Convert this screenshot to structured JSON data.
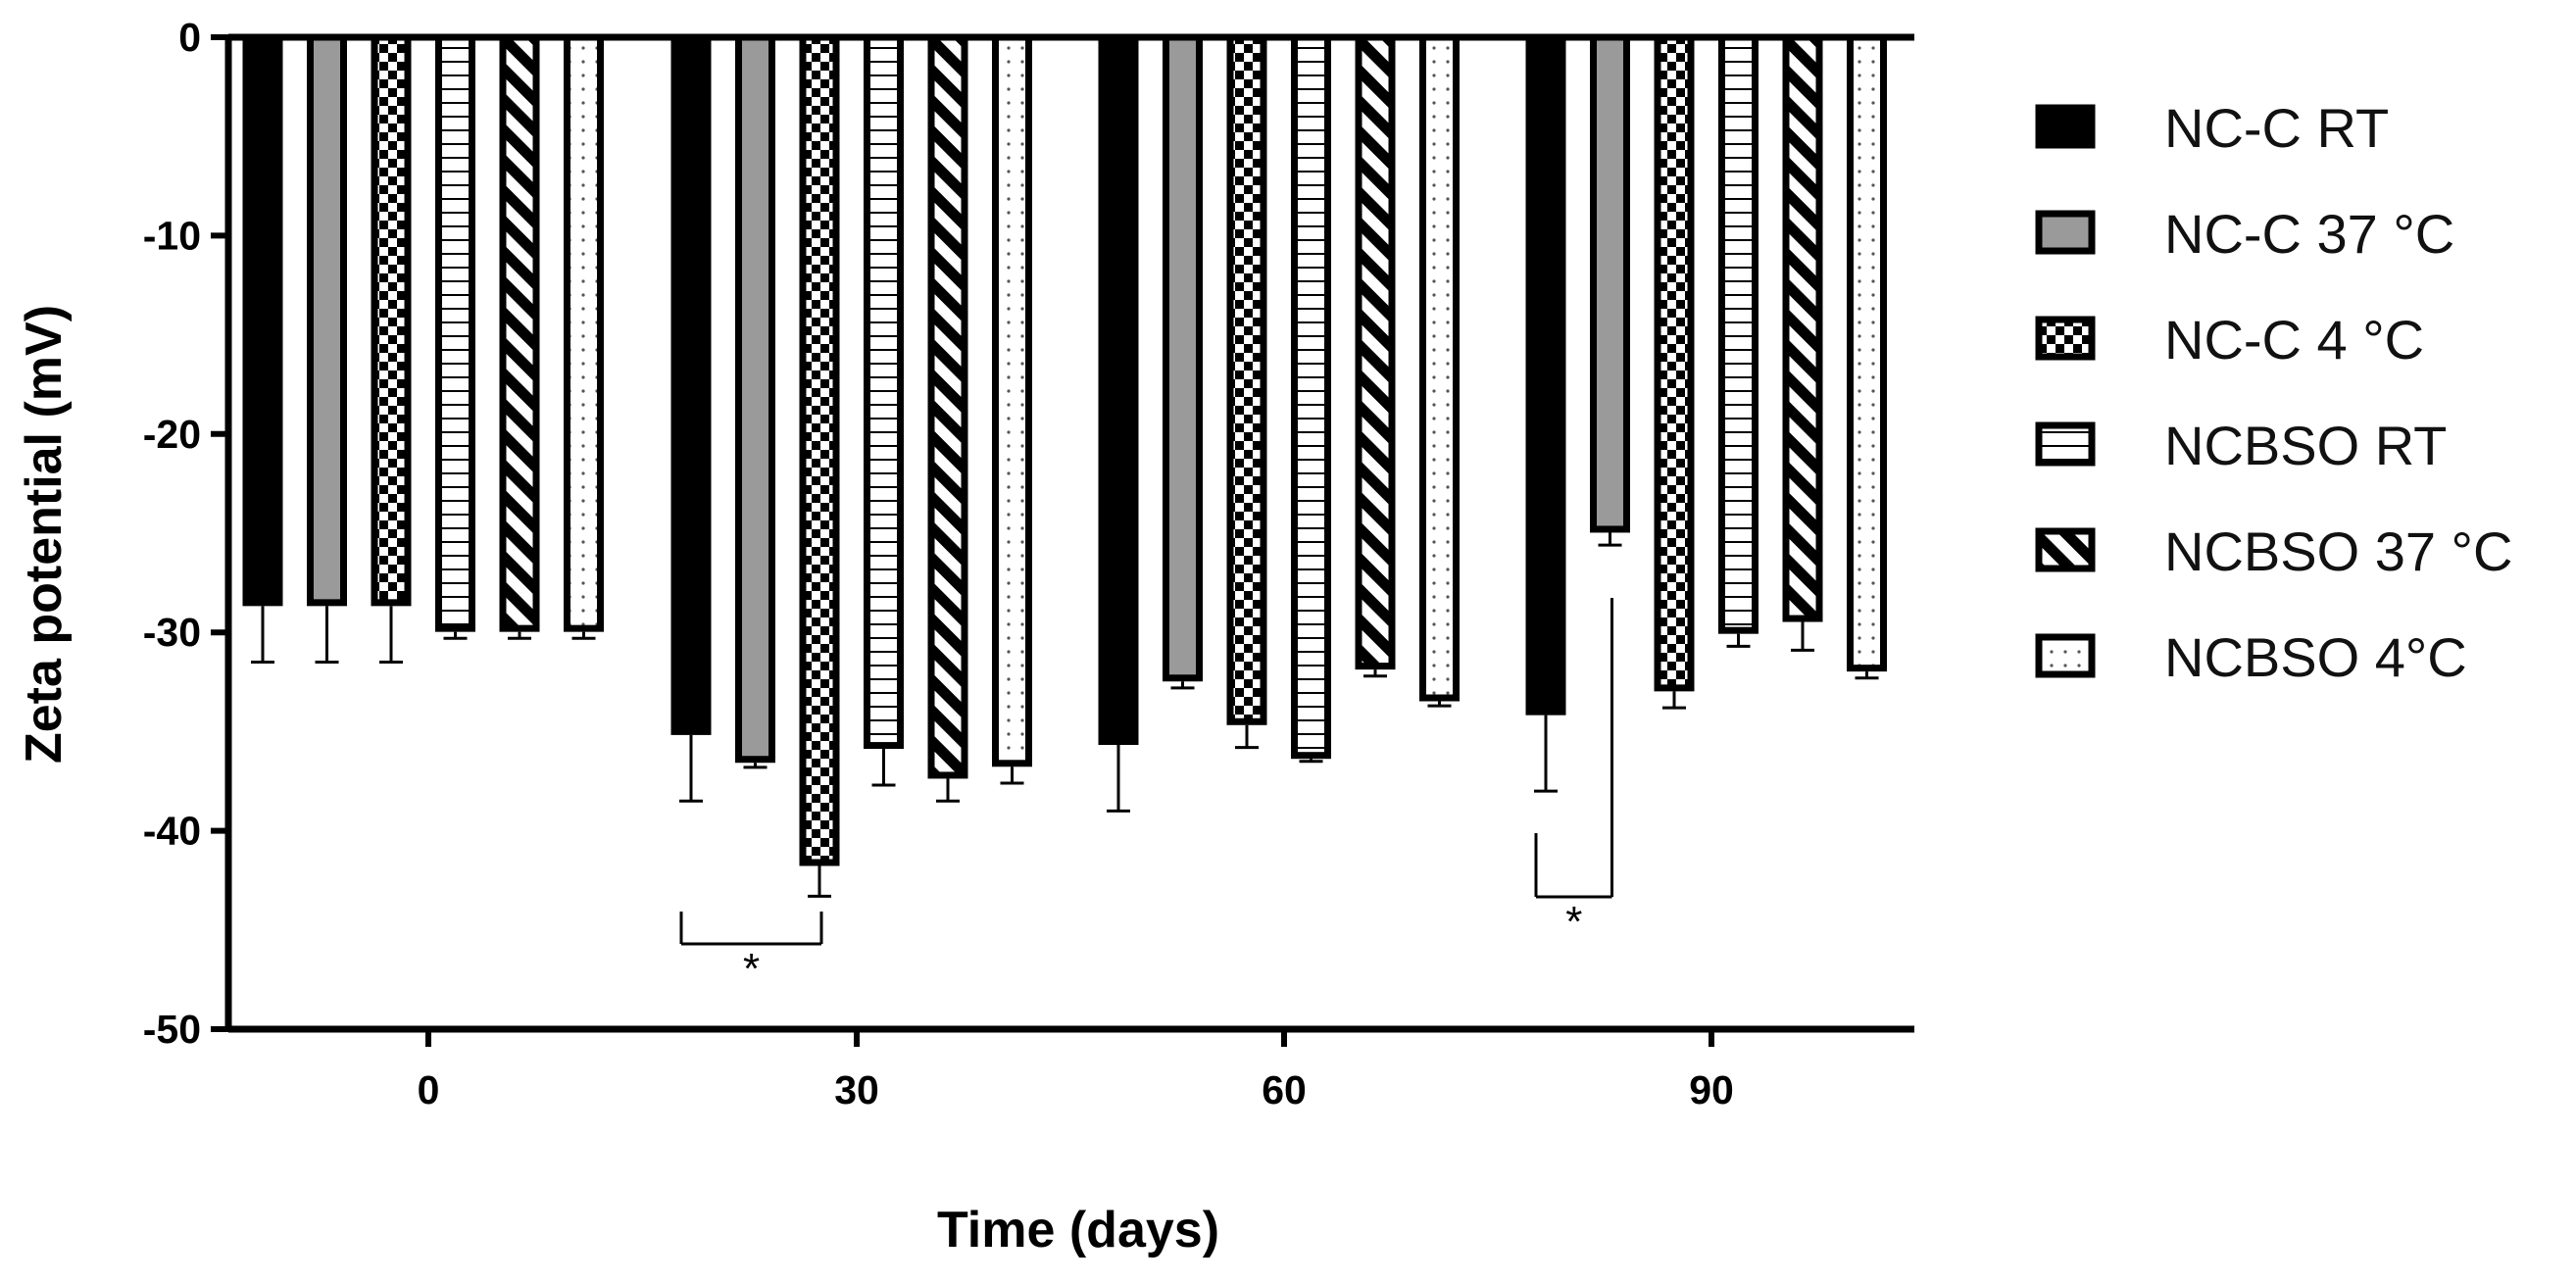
{
  "chart_data": {
    "type": "bar",
    "xlabel": "Time (days)",
    "ylabel": "Zeta potential (mV)",
    "ylim": [
      -50,
      0
    ],
    "yticks": [
      0,
      -10,
      -20,
      -30,
      -40,
      -50
    ],
    "categories": [
      "0",
      "30",
      "60",
      "90"
    ],
    "series": [
      {
        "name": "NC-C RT",
        "pattern": "solid-black",
        "values": [
          -28.5,
          -35.0,
          -35.5,
          -34.0
        ],
        "errors": [
          3.0,
          3.5,
          3.5,
          4.0
        ]
      },
      {
        "name": "NC-C 37 °C",
        "pattern": "solid-gray",
        "values": [
          -28.5,
          -36.4,
          -32.3,
          -24.8
        ],
        "errors": [
          3.0,
          0.4,
          0.5,
          0.8
        ]
      },
      {
        "name": "NC-C 4 °C",
        "pattern": "checker",
        "values": [
          -28.5,
          -41.6,
          -34.5,
          -32.8
        ],
        "errors": [
          3.0,
          1.7,
          1.3,
          1.0
        ]
      },
      {
        "name": "NCBSO RT",
        "pattern": "hlines",
        "values": [
          -29.8,
          -35.7,
          -36.2,
          -29.9
        ],
        "errors": [
          0.5,
          2.0,
          0.3,
          0.8
        ]
      },
      {
        "name": "NCBSO 37 °C",
        "pattern": "diagonal",
        "values": [
          -29.8,
          -37.2,
          -31.7,
          -29.3
        ],
        "errors": [
          0.5,
          1.3,
          0.5,
          1.6
        ]
      },
      {
        "name": "NCBSO 4°C",
        "pattern": "dots",
        "values": [
          -29.8,
          -36.6,
          -33.3,
          -31.8
        ],
        "errors": [
          0.5,
          1.0,
          0.4,
          0.5
        ]
      }
    ],
    "legend_position": "right",
    "annotations": [
      {
        "label": "*",
        "category": "30",
        "between": [
          "NC-C RT",
          "NC-C 4 °C"
        ]
      },
      {
        "label": "*",
        "category": "90",
        "between": [
          "NC-C RT",
          "NC-C 37 °C"
        ]
      }
    ]
  }
}
